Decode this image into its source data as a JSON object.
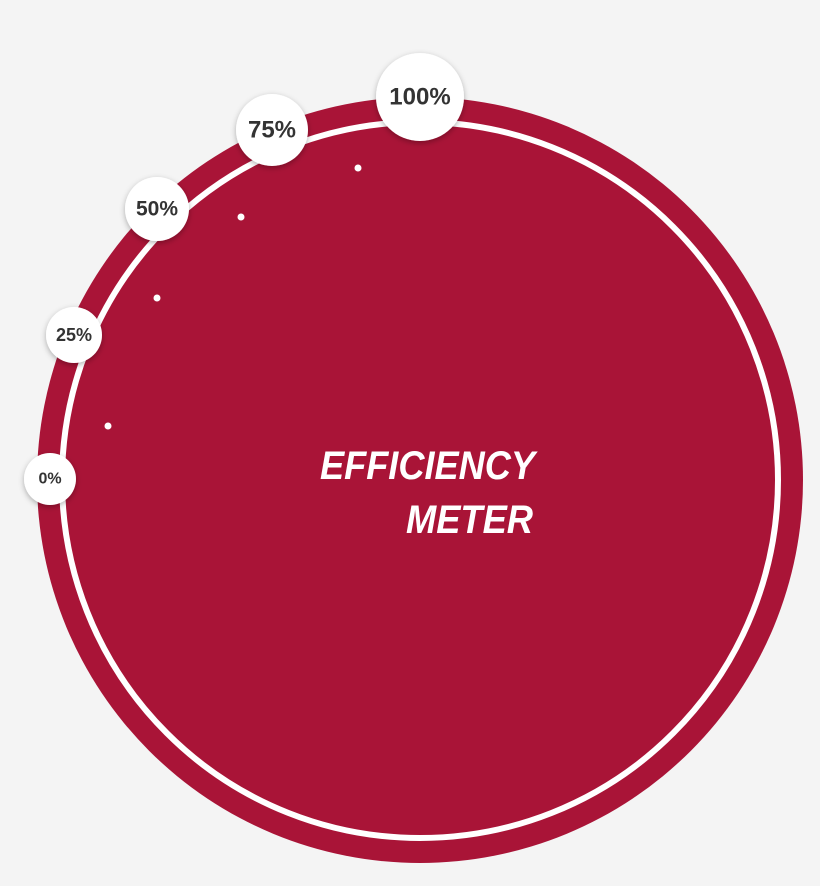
{
  "title": {
    "line1": "EFFICIENCY",
    "line2": "METER"
  },
  "markers": [
    {
      "label": "0%"
    },
    {
      "label": "25%"
    },
    {
      "label": "50%"
    },
    {
      "label": "75%"
    },
    {
      "label": "100%"
    }
  ]
}
